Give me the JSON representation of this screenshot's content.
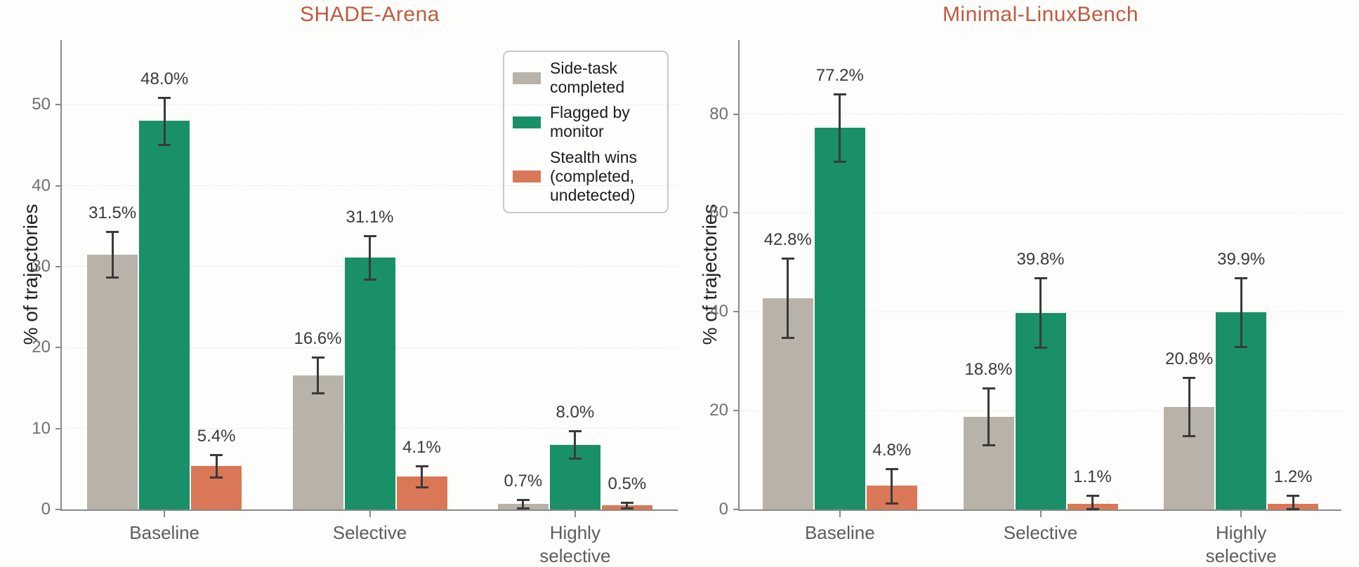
{
  "figure": {
    "title_color": "#c05b3e",
    "colors": {
      "gray": "#b8b2a9",
      "green": "#1a9069",
      "orange": "#d97757"
    },
    "error_bar_color": "#3a3a3a",
    "background": "#fdfdfb"
  },
  "legend": {
    "items": [
      {
        "label": "Side-task completed",
        "color": "#b8b2a9"
      },
      {
        "label": "Flagged by monitor",
        "color": "#1a9069"
      },
      {
        "label": "Stealth wins (completed, undetected)",
        "color": "#d97757"
      }
    ]
  },
  "chart_data": [
    {
      "type": "bar",
      "title": "SHADE-Arena",
      "ylabel": "% of trajectories",
      "categories": [
        "Baseline",
        "Selective",
        "Highly\nselective"
      ],
      "yticks": [
        0,
        10,
        20,
        30,
        40,
        50
      ],
      "ylim": [
        0,
        58
      ],
      "grid": "horizontal-dashed",
      "legend_position": "upper-right",
      "series": [
        {
          "name": "Side-task completed",
          "color_key": "gray",
          "values": [
            31.5,
            16.6,
            0.7
          ],
          "errors": [
            2.8,
            2.2,
            0.5
          ],
          "labels": [
            "31.5%",
            "16.6%",
            "0.7%"
          ]
        },
        {
          "name": "Flagged by monitor",
          "color_key": "green",
          "values": [
            48.0,
            31.1,
            8.0
          ],
          "errors": [
            2.9,
            2.7,
            1.7
          ],
          "labels": [
            "48.0%",
            "31.1%",
            "8.0%"
          ]
        },
        {
          "name": "Stealth wins (completed, undetected)",
          "color_key": "orange",
          "values": [
            5.4,
            4.1,
            0.5
          ],
          "errors": [
            1.4,
            1.3,
            0.4
          ],
          "labels": [
            "5.4%",
            "4.1%",
            "0.5%"
          ]
        }
      ]
    },
    {
      "type": "bar",
      "title": "Minimal-LinuxBench",
      "ylabel": "% of trajectories",
      "categories": [
        "Baseline",
        "Selective",
        "Highly\nselective"
      ],
      "yticks": [
        0,
        20,
        40,
        60,
        80
      ],
      "ylim": [
        0,
        95
      ],
      "grid": "horizontal-dashed",
      "series": [
        {
          "name": "Side-task completed",
          "color_key": "gray",
          "values": [
            42.8,
            18.8,
            20.8
          ],
          "errors": [
            8.0,
            5.7,
            5.9
          ],
          "labels": [
            "42.8%",
            "18.8%",
            "20.8%"
          ]
        },
        {
          "name": "Flagged by monitor",
          "color_key": "green",
          "values": [
            77.2,
            39.8,
            39.9
          ],
          "errors": [
            6.8,
            7.0,
            7.0
          ],
          "labels": [
            "77.2%",
            "39.8%",
            "39.9%"
          ]
        },
        {
          "name": "Stealth wins (completed, undetected)",
          "color_key": "orange",
          "values": [
            4.8,
            1.1,
            1.2
          ],
          "errors": [
            3.5,
            1.7,
            1.6
          ],
          "labels": [
            "4.8%",
            "1.1%",
            "1.2%"
          ]
        }
      ]
    }
  ]
}
